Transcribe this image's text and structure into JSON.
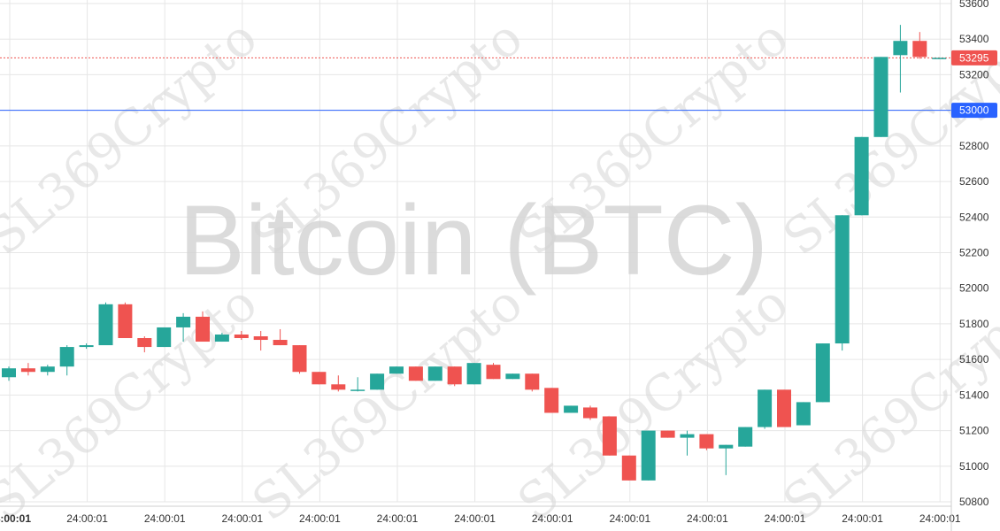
{
  "chart_data": {
    "type": "candlestick",
    "watermark_title": "Bitcoin (BTC)",
    "watermark_text": "SL369Crypto",
    "ylim": [
      50800,
      53600
    ],
    "y_ticks": [
      "53600",
      "53400",
      "53200",
      "53000",
      "52800",
      "52600",
      "52400",
      "52200",
      "52000",
      "51800",
      "51600",
      "51400",
      "51200",
      "51000",
      "50800"
    ],
    "x_ticks": [
      "24:00:01",
      "24:00:01",
      "24:00:01",
      "24:00:01",
      "24:00:01",
      "24:00:01",
      "24:00:01",
      "24:00:01",
      "24:00:01",
      "24:00:01",
      "24:00:01",
      "24:00:01",
      "24:00:01"
    ],
    "grid": true,
    "colors": {
      "up": "#26a69a",
      "down": "#ef5350",
      "level_line": "#2962ff",
      "last_price": "#ef5350"
    },
    "level_line": {
      "value": 53000,
      "label": "53000"
    },
    "last_price": {
      "value": 53295,
      "label": "53295"
    },
    "candles": [
      {
        "o": 51500,
        "h": 51560,
        "l": 51480,
        "c": 51550
      },
      {
        "o": 51550,
        "h": 51580,
        "l": 51510,
        "c": 51530
      },
      {
        "o": 51530,
        "h": 51570,
        "l": 51510,
        "c": 51560
      },
      {
        "o": 51560,
        "h": 51680,
        "l": 51510,
        "c": 51670
      },
      {
        "o": 51670,
        "h": 51690,
        "l": 51660,
        "c": 51680
      },
      {
        "o": 51680,
        "h": 51920,
        "l": 51680,
        "c": 51910
      },
      {
        "o": 51910,
        "h": 51920,
        "l": 51720,
        "c": 51720
      },
      {
        "o": 51720,
        "h": 51730,
        "l": 51640,
        "c": 51670
      },
      {
        "o": 51670,
        "h": 51780,
        "l": 51670,
        "c": 51780
      },
      {
        "o": 51780,
        "h": 51860,
        "l": 51700,
        "c": 51840
      },
      {
        "o": 51840,
        "h": 51870,
        "l": 51700,
        "c": 51700
      },
      {
        "o": 51700,
        "h": 51750,
        "l": 51700,
        "c": 51740
      },
      {
        "o": 51740,
        "h": 51760,
        "l": 51710,
        "c": 51720
      },
      {
        "o": 51730,
        "h": 51760,
        "l": 51650,
        "c": 51710
      },
      {
        "o": 51710,
        "h": 51770,
        "l": 51680,
        "c": 51680
      },
      {
        "o": 51680,
        "h": 51680,
        "l": 51520,
        "c": 51530
      },
      {
        "o": 51530,
        "h": 51530,
        "l": 51460,
        "c": 51460
      },
      {
        "o": 51460,
        "h": 51510,
        "l": 51420,
        "c": 51430
      },
      {
        "o": 51430,
        "h": 51500,
        "l": 51420,
        "c": 51430
      },
      {
        "o": 51430,
        "h": 51520,
        "l": 51430,
        "c": 51520
      },
      {
        "o": 51520,
        "h": 51560,
        "l": 51520,
        "c": 51560
      },
      {
        "o": 51560,
        "h": 51560,
        "l": 51480,
        "c": 51480
      },
      {
        "o": 51480,
        "h": 51560,
        "l": 51480,
        "c": 51560
      },
      {
        "o": 51560,
        "h": 51560,
        "l": 51450,
        "c": 51460
      },
      {
        "o": 51460,
        "h": 51580,
        "l": 51460,
        "c": 51580
      },
      {
        "o": 51570,
        "h": 51580,
        "l": 51490,
        "c": 51490
      },
      {
        "o": 51490,
        "h": 51520,
        "l": 51490,
        "c": 51520
      },
      {
        "o": 51520,
        "h": 51520,
        "l": 51420,
        "c": 51430
      },
      {
        "o": 51440,
        "h": 51440,
        "l": 51300,
        "c": 51300
      },
      {
        "o": 51300,
        "h": 51340,
        "l": 51300,
        "c": 51340
      },
      {
        "o": 51330,
        "h": 51340,
        "l": 51260,
        "c": 51270
      },
      {
        "o": 51280,
        "h": 51280,
        "l": 51060,
        "c": 51060
      },
      {
        "o": 51060,
        "h": 51060,
        "l": 50920,
        "c": 50920
      },
      {
        "o": 50920,
        "h": 51200,
        "l": 50920,
        "c": 51200
      },
      {
        "o": 51200,
        "h": 51200,
        "l": 51160,
        "c": 51160
      },
      {
        "o": 51160,
        "h": 51200,
        "l": 51060,
        "c": 51180
      },
      {
        "o": 51180,
        "h": 51180,
        "l": 51090,
        "c": 51100
      },
      {
        "o": 51100,
        "h": 51120,
        "l": 50950,
        "c": 51120
      },
      {
        "o": 51110,
        "h": 51220,
        "l": 51110,
        "c": 51220
      },
      {
        "o": 51220,
        "h": 51430,
        "l": 51210,
        "c": 51430
      },
      {
        "o": 51430,
        "h": 51430,
        "l": 51220,
        "c": 51220
      },
      {
        "o": 51230,
        "h": 51360,
        "l": 51230,
        "c": 51360
      },
      {
        "o": 51360,
        "h": 51690,
        "l": 51360,
        "c": 51690
      },
      {
        "o": 51690,
        "h": 52410,
        "l": 51650,
        "c": 52410
      },
      {
        "o": 52410,
        "h": 52850,
        "l": 52410,
        "c": 52850
      },
      {
        "o": 52850,
        "h": 53300,
        "l": 52850,
        "c": 53300
      },
      {
        "o": 53310,
        "h": 53480,
        "l": 53100,
        "c": 53390
      },
      {
        "o": 53390,
        "h": 53440,
        "l": 53290,
        "c": 53300
      },
      {
        "o": 53295,
        "h": 53295,
        "l": 53290,
        "c": 53295
      }
    ]
  }
}
